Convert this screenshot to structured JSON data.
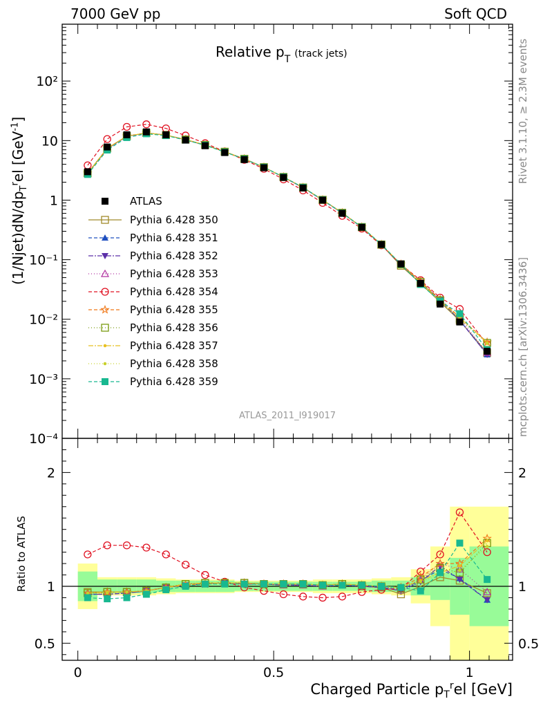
{
  "header": {
    "left": "7000 GeV pp",
    "right": "Soft QCD"
  },
  "side_labels": {
    "upper": "Rivet 3.1.10, ≥ 2.3M events",
    "lower": "mcplots.cern.ch [arXiv:1306.3436]"
  },
  "chart_data": {
    "type": "line",
    "title": "Relative p_T (track jets)",
    "title_main": "Relative p",
    "title_sub": "T",
    "title_note": "(track jets)",
    "watermark": "ATLAS_2011_I919017",
    "ylabel_top": "(1/Njet)dN/dp_T^r el [GeV^-1]",
    "ylabel_bottom": "Ratio to ATLAS",
    "xlabel": "Charged Particle p_T^r el [GeV]",
    "xlim": [
      -0.04,
      1.11
    ],
    "top_ylim": [
      0.0001,
      900
    ],
    "top_yscale": "log",
    "top_yticks": [
      "10⁻⁴",
      "10⁻³",
      "10⁻²",
      "10⁻¹",
      "1",
      "10",
      "10²"
    ],
    "ratio_ylim": [
      0.35,
      2.3
    ],
    "ratio_yticks": [
      "0.5",
      "1",
      "2"
    ],
    "xticks": [
      "0",
      "0.5",
      "1"
    ],
    "legend_position": "middle-left",
    "x": [
      0.025,
      0.075,
      0.125,
      0.175,
      0.225,
      0.275,
      0.325,
      0.375,
      0.425,
      0.475,
      0.525,
      0.575,
      0.625,
      0.675,
      0.725,
      0.775,
      0.825,
      0.875,
      0.925,
      0.975,
      1.045
    ],
    "x_edges": [
      0.0,
      0.05,
      0.1,
      0.15,
      0.2,
      0.25,
      0.3,
      0.35,
      0.4,
      0.45,
      0.5,
      0.55,
      0.6,
      0.65,
      0.7,
      0.75,
      0.8,
      0.85,
      0.9,
      0.95,
      1.0,
      1.1
    ],
    "data": {
      "name": "ATLAS",
      "values": [
        3.0,
        7.8,
        12.5,
        14.0,
        12.5,
        10.2,
        8.2,
        6.3,
        4.8,
        3.5,
        2.4,
        1.6,
        1.0,
        0.6,
        0.35,
        0.18,
        0.085,
        0.04,
        0.018,
        0.009,
        0.0029
      ]
    },
    "bands": {
      "inner": [
        0.13,
        0.06,
        0.06,
        0.06,
        0.05,
        0.05,
        0.05,
        0.05,
        0.04,
        0.04,
        0.04,
        0.04,
        0.04,
        0.04,
        0.04,
        0.05,
        0.05,
        0.08,
        0.12,
        0.25,
        0.35
      ],
      "outer": [
        0.2,
        0.08,
        0.08,
        0.08,
        0.07,
        0.06,
        0.06,
        0.06,
        0.05,
        0.05,
        0.05,
        0.05,
        0.06,
        0.06,
        0.06,
        0.07,
        0.08,
        0.15,
        0.35,
        0.7,
        0.7
      ],
      "inner_color": "#98fb98",
      "outer_color": "#ffff99"
    },
    "series": [
      {
        "name": "Pythia 6.428 350",
        "color": "#a08a2a",
        "marker": "square-open",
        "dash": "",
        "ratio": [
          0.95,
          0.95,
          0.95,
          0.96,
          0.99,
          1.02,
          1.03,
          1.03,
          1.03,
          1.02,
          1.02,
          1.02,
          1.01,
          1.02,
          1.0,
          0.99,
          0.93,
          1.0,
          1.08,
          1.05,
          0.94
        ]
      },
      {
        "name": "Pythia 6.428 351",
        "color": "#1f4fbf",
        "marker": "triangle-up",
        "dash": "5,3",
        "ratio": [
          0.93,
          0.93,
          0.94,
          0.96,
          0.99,
          1.01,
          1.02,
          1.03,
          1.02,
          1.02,
          1.01,
          1.01,
          1.0,
          1.01,
          1.0,
          0.99,
          0.97,
          1.05,
          1.15,
          1.07,
          0.88
        ]
      },
      {
        "name": "Pythia 6.428 352",
        "color": "#5b2fa8",
        "marker": "triangle-down",
        "dash": "7,2,2,2",
        "ratio": [
          0.93,
          0.93,
          0.94,
          0.96,
          0.99,
          1.01,
          1.02,
          1.03,
          1.02,
          1.02,
          1.01,
          1.01,
          1.0,
          1.01,
          1.0,
          0.99,
          0.96,
          1.04,
          1.18,
          1.06,
          0.88
        ]
      },
      {
        "name": "Pythia 6.428 353",
        "color": "#b030a0",
        "marker": "triangle-open",
        "dash": "1,3",
        "ratio": [
          0.94,
          0.94,
          0.95,
          0.96,
          0.99,
          1.01,
          1.02,
          1.03,
          1.02,
          1.02,
          1.01,
          1.01,
          1.0,
          1.01,
          1.0,
          0.99,
          0.97,
          1.06,
          1.2,
          1.15,
          0.95
        ]
      },
      {
        "name": "Pythia 6.428 354",
        "color": "#e01020",
        "marker": "circle-open",
        "dash": "5,3",
        "ratio": [
          1.28,
          1.36,
          1.36,
          1.34,
          1.28,
          1.19,
          1.1,
          1.04,
          0.99,
          0.96,
          0.93,
          0.91,
          0.9,
          0.91,
          0.95,
          0.97,
          0.98,
          1.13,
          1.28,
          1.65,
          1.3
        ]
      },
      {
        "name": "Pythia 6.428 355",
        "color": "#f07818",
        "marker": "star-open",
        "dash": "5,3",
        "ratio": [
          0.94,
          0.95,
          0.95,
          0.96,
          0.99,
          1.01,
          1.02,
          1.03,
          1.03,
          1.02,
          1.02,
          1.02,
          1.01,
          1.02,
          1.01,
          1.0,
          0.99,
          1.08,
          1.2,
          1.2,
          1.42
        ]
      },
      {
        "name": "Pythia 6.428 356",
        "color": "#7a9a10",
        "marker": "square-open",
        "dash": "1,3",
        "ratio": [
          0.94,
          0.95,
          0.95,
          0.96,
          0.99,
          1.02,
          1.03,
          1.03,
          1.03,
          1.02,
          1.02,
          1.02,
          1.01,
          1.02,
          1.01,
          1.0,
          0.98,
          1.06,
          1.16,
          1.12,
          1.38
        ]
      },
      {
        "name": "Pythia 6.428 357",
        "color": "#e8c020",
        "marker": "dot",
        "dash": "7,2,2,2",
        "ratio": [
          0.94,
          0.95,
          0.95,
          0.96,
          0.99,
          1.02,
          1.03,
          1.03,
          1.03,
          1.02,
          1.02,
          1.02,
          1.01,
          1.02,
          1.01,
          1.0,
          0.99,
          1.05,
          1.12,
          1.18,
          1.4
        ]
      },
      {
        "name": "Pythia 6.428 358",
        "color": "#c8d02a",
        "marker": "dot",
        "dash": "1,3",
        "ratio": [
          0.94,
          0.94,
          0.95,
          0.96,
          0.99,
          1.01,
          1.02,
          1.03,
          1.03,
          1.02,
          1.02,
          1.02,
          1.01,
          1.02,
          1.01,
          1.0,
          0.99,
          1.04,
          1.1,
          1.14,
          1.35
        ]
      },
      {
        "name": "Pythia 6.428 359",
        "color": "#18b890",
        "marker": "square",
        "dash": "5,3",
        "ratio": [
          0.9,
          0.89,
          0.9,
          0.93,
          0.97,
          1.0,
          1.02,
          1.02,
          1.02,
          1.02,
          1.02,
          1.02,
          1.01,
          1.01,
          1.01,
          1.0,
          0.99,
          0.96,
          1.12,
          1.38,
          1.06
        ]
      }
    ]
  }
}
